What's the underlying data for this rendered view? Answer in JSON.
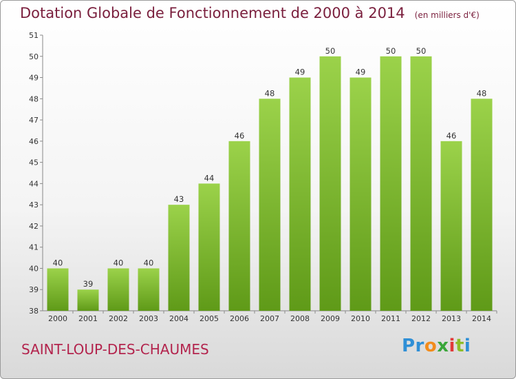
{
  "title": "Dotation Globale de Fonctionnement de 2000 à 2014",
  "unit_note": "(en milliers d'€)",
  "city": "SAINT-LOUP-DES-CHAUMES",
  "logo": {
    "p1": "Pr",
    "p2": "o",
    "p3": "x",
    "p4": "i",
    "p5": "t",
    "p6": "i"
  },
  "colors": {
    "bar_top": "#9bd24a",
    "bar_bottom": "#5f9a18",
    "title": "#7a1f3d",
    "city": "#b3244d"
  },
  "chart_data": {
    "type": "bar",
    "title": "Dotation Globale de Fonctionnement de 2000 à 2014",
    "categories": [
      "2000",
      "2001",
      "2002",
      "2003",
      "2004",
      "2005",
      "2006",
      "2007",
      "2008",
      "2009",
      "2010",
      "2011",
      "2012",
      "2013",
      "2014"
    ],
    "values": [
      40,
      39,
      40,
      40,
      43,
      44,
      46,
      48,
      49,
      50,
      49,
      50,
      50,
      46,
      48
    ],
    "ylim": [
      38,
      51
    ],
    "yticks": [
      38,
      39,
      40,
      41,
      42,
      43,
      44,
      45,
      46,
      47,
      48,
      49,
      50,
      51
    ],
    "grid": false,
    "xlabel": "",
    "ylabel": ""
  }
}
